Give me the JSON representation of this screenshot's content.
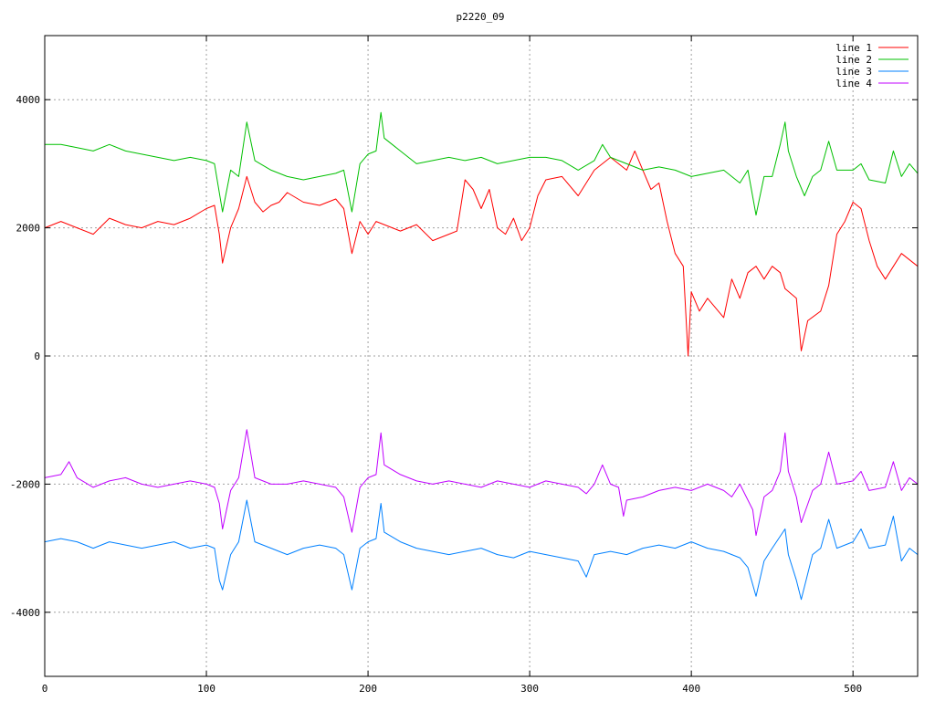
{
  "chart_data": {
    "type": "line",
    "title": "p2220_09",
    "xlabel": "",
    "ylabel": "",
    "xlim": [
      0,
      540
    ],
    "ylim": [
      -5000,
      5000
    ],
    "xticks": [
      0,
      100,
      200,
      300,
      400,
      500
    ],
    "yticks": [
      -4000,
      -2000,
      0,
      2000,
      4000
    ],
    "grid": true,
    "legend_position": "top-right",
    "series": [
      {
        "name": "line 1",
        "color": "#ff0000",
        "points": [
          [
            0,
            2000
          ],
          [
            10,
            2100
          ],
          [
            20,
            2000
          ],
          [
            30,
            1900
          ],
          [
            40,
            2150
          ],
          [
            50,
            2050
          ],
          [
            60,
            2000
          ],
          [
            70,
            2100
          ],
          [
            80,
            2050
          ],
          [
            90,
            2150
          ],
          [
            100,
            2300
          ],
          [
            105,
            2350
          ],
          [
            108,
            1900
          ],
          [
            110,
            1450
          ],
          [
            115,
            2000
          ],
          [
            120,
            2300
          ],
          [
            125,
            2800
          ],
          [
            130,
            2400
          ],
          [
            135,
            2250
          ],
          [
            140,
            2350
          ],
          [
            145,
            2400
          ],
          [
            150,
            2550
          ],
          [
            160,
            2400
          ],
          [
            170,
            2350
          ],
          [
            180,
            2450
          ],
          [
            185,
            2300
          ],
          [
            190,
            1600
          ],
          [
            195,
            2100
          ],
          [
            200,
            1900
          ],
          [
            205,
            2100
          ],
          [
            210,
            2050
          ],
          [
            220,
            1950
          ],
          [
            230,
            2050
          ],
          [
            240,
            1800
          ],
          [
            250,
            1900
          ],
          [
            255,
            1950
          ],
          [
            260,
            2750
          ],
          [
            265,
            2600
          ],
          [
            270,
            2300
          ],
          [
            275,
            2600
          ],
          [
            280,
            2000
          ],
          [
            285,
            1900
          ],
          [
            290,
            2150
          ],
          [
            295,
            1800
          ],
          [
            300,
            2000
          ],
          [
            305,
            2500
          ],
          [
            310,
            2750
          ],
          [
            320,
            2800
          ],
          [
            330,
            2500
          ],
          [
            340,
            2900
          ],
          [
            350,
            3100
          ],
          [
            360,
            2900
          ],
          [
            365,
            3200
          ],
          [
            370,
            2900
          ],
          [
            375,
            2600
          ],
          [
            380,
            2700
          ],
          [
            385,
            2100
          ],
          [
            390,
            1600
          ],
          [
            395,
            1400
          ],
          [
            398,
            0
          ],
          [
            400,
            1000
          ],
          [
            405,
            700
          ],
          [
            410,
            900
          ],
          [
            420,
            600
          ],
          [
            425,
            1200
          ],
          [
            430,
            900
          ],
          [
            435,
            1300
          ],
          [
            440,
            1400
          ],
          [
            445,
            1200
          ],
          [
            450,
            1400
          ],
          [
            455,
            1300
          ],
          [
            458,
            1050
          ],
          [
            465,
            900
          ],
          [
            468,
            80
          ],
          [
            472,
            550
          ],
          [
            480,
            700
          ],
          [
            485,
            1100
          ],
          [
            490,
            1900
          ],
          [
            495,
            2100
          ],
          [
            500,
            2400
          ],
          [
            505,
            2300
          ],
          [
            510,
            1800
          ],
          [
            515,
            1400
          ],
          [
            520,
            1200
          ],
          [
            530,
            1600
          ],
          [
            540,
            1400
          ]
        ]
      },
      {
        "name": "line 2",
        "color": "#00c000",
        "points": [
          [
            0,
            3300
          ],
          [
            10,
            3300
          ],
          [
            20,
            3250
          ],
          [
            30,
            3200
          ],
          [
            40,
            3300
          ],
          [
            50,
            3200
          ],
          [
            60,
            3150
          ],
          [
            70,
            3100
          ],
          [
            80,
            3050
          ],
          [
            90,
            3100
          ],
          [
            100,
            3050
          ],
          [
            105,
            3000
          ],
          [
            110,
            2250
          ],
          [
            115,
            2900
          ],
          [
            120,
            2800
          ],
          [
            125,
            3650
          ],
          [
            130,
            3050
          ],
          [
            140,
            2900
          ],
          [
            150,
            2800
          ],
          [
            160,
            2750
          ],
          [
            170,
            2800
          ],
          [
            180,
            2850
          ],
          [
            185,
            2900
          ],
          [
            190,
            2250
          ],
          [
            195,
            3000
          ],
          [
            200,
            3150
          ],
          [
            205,
            3200
          ],
          [
            208,
            3800
          ],
          [
            210,
            3400
          ],
          [
            215,
            3300
          ],
          [
            220,
            3200
          ],
          [
            230,
            3000
          ],
          [
            240,
            3050
          ],
          [
            250,
            3100
          ],
          [
            260,
            3050
          ],
          [
            270,
            3100
          ],
          [
            280,
            3000
          ],
          [
            290,
            3050
          ],
          [
            300,
            3100
          ],
          [
            310,
            3100
          ],
          [
            320,
            3050
          ],
          [
            330,
            2900
          ],
          [
            340,
            3050
          ],
          [
            345,
            3300
          ],
          [
            350,
            3100
          ],
          [
            360,
            3000
          ],
          [
            370,
            2900
          ],
          [
            380,
            2950
          ],
          [
            390,
            2900
          ],
          [
            400,
            2800
          ],
          [
            410,
            2850
          ],
          [
            420,
            2900
          ],
          [
            430,
            2700
          ],
          [
            435,
            2900
          ],
          [
            440,
            2200
          ],
          [
            445,
            2800
          ],
          [
            450,
            2800
          ],
          [
            455,
            3300
          ],
          [
            458,
            3650
          ],
          [
            460,
            3200
          ],
          [
            465,
            2800
          ],
          [
            470,
            2500
          ],
          [
            475,
            2800
          ],
          [
            480,
            2900
          ],
          [
            485,
            3350
          ],
          [
            490,
            2900
          ],
          [
            500,
            2900
          ],
          [
            505,
            3000
          ],
          [
            510,
            2750
          ],
          [
            520,
            2700
          ],
          [
            525,
            3200
          ],
          [
            530,
            2800
          ],
          [
            535,
            3000
          ],
          [
            540,
            2850
          ]
        ]
      },
      {
        "name": "line 3",
        "color": "#0080ff",
        "points": [
          [
            0,
            -2900
          ],
          [
            10,
            -2850
          ],
          [
            20,
            -2900
          ],
          [
            30,
            -3000
          ],
          [
            40,
            -2900
          ],
          [
            50,
            -2950
          ],
          [
            60,
            -3000
          ],
          [
            70,
            -2950
          ],
          [
            80,
            -2900
          ],
          [
            90,
            -3000
          ],
          [
            100,
            -2950
          ],
          [
            105,
            -3000
          ],
          [
            108,
            -3500
          ],
          [
            110,
            -3650
          ],
          [
            115,
            -3100
          ],
          [
            120,
            -2900
          ],
          [
            125,
            -2250
          ],
          [
            130,
            -2900
          ],
          [
            140,
            -3000
          ],
          [
            150,
            -3100
          ],
          [
            160,
            -3000
          ],
          [
            170,
            -2950
          ],
          [
            180,
            -3000
          ],
          [
            185,
            -3100
          ],
          [
            190,
            -3650
          ],
          [
            195,
            -3000
          ],
          [
            200,
            -2900
          ],
          [
            205,
            -2850
          ],
          [
            208,
            -2300
          ],
          [
            210,
            -2750
          ],
          [
            220,
            -2900
          ],
          [
            230,
            -3000
          ],
          [
            240,
            -3050
          ],
          [
            250,
            -3100
          ],
          [
            260,
            -3050
          ],
          [
            270,
            -3000
          ],
          [
            280,
            -3100
          ],
          [
            290,
            -3150
          ],
          [
            300,
            -3050
          ],
          [
            310,
            -3100
          ],
          [
            320,
            -3150
          ],
          [
            330,
            -3200
          ],
          [
            335,
            -3450
          ],
          [
            340,
            -3100
          ],
          [
            350,
            -3050
          ],
          [
            360,
            -3100
          ],
          [
            370,
            -3000
          ],
          [
            380,
            -2950
          ],
          [
            390,
            -3000
          ],
          [
            400,
            -2900
          ],
          [
            410,
            -3000
          ],
          [
            420,
            -3050
          ],
          [
            430,
            -3150
          ],
          [
            435,
            -3300
          ],
          [
            440,
            -3750
          ],
          [
            445,
            -3200
          ],
          [
            450,
            -3000
          ],
          [
            458,
            -2700
          ],
          [
            460,
            -3100
          ],
          [
            465,
            -3500
          ],
          [
            468,
            -3800
          ],
          [
            475,
            -3100
          ],
          [
            480,
            -3000
          ],
          [
            485,
            -2550
          ],
          [
            490,
            -3000
          ],
          [
            500,
            -2900
          ],
          [
            505,
            -2700
          ],
          [
            510,
            -3000
          ],
          [
            520,
            -2950
          ],
          [
            525,
            -2500
          ],
          [
            530,
            -3200
          ],
          [
            535,
            -3000
          ],
          [
            540,
            -3100
          ]
        ]
      },
      {
        "name": "line 4",
        "color": "#c000ff",
        "points": [
          [
            0,
            -1900
          ],
          [
            10,
            -1850
          ],
          [
            15,
            -1650
          ],
          [
            20,
            -1900
          ],
          [
            30,
            -2050
          ],
          [
            40,
            -1950
          ],
          [
            50,
            -1900
          ],
          [
            60,
            -2000
          ],
          [
            70,
            -2050
          ],
          [
            80,
            -2000
          ],
          [
            90,
            -1950
          ],
          [
            100,
            -2000
          ],
          [
            105,
            -2050
          ],
          [
            108,
            -2300
          ],
          [
            110,
            -2700
          ],
          [
            115,
            -2100
          ],
          [
            120,
            -1900
          ],
          [
            125,
            -1150
          ],
          [
            130,
            -1900
          ],
          [
            140,
            -2000
          ],
          [
            150,
            -2000
          ],
          [
            160,
            -1950
          ],
          [
            170,
            -2000
          ],
          [
            180,
            -2050
          ],
          [
            185,
            -2200
          ],
          [
            190,
            -2750
          ],
          [
            195,
            -2050
          ],
          [
            200,
            -1900
          ],
          [
            205,
            -1850
          ],
          [
            208,
            -1200
          ],
          [
            210,
            -1700
          ],
          [
            220,
            -1850
          ],
          [
            230,
            -1950
          ],
          [
            240,
            -2000
          ],
          [
            250,
            -1950
          ],
          [
            260,
            -2000
          ],
          [
            270,
            -2050
          ],
          [
            280,
            -1950
          ],
          [
            290,
            -2000
          ],
          [
            300,
            -2050
          ],
          [
            310,
            -1950
          ],
          [
            320,
            -2000
          ],
          [
            330,
            -2050
          ],
          [
            335,
            -2150
          ],
          [
            340,
            -2000
          ],
          [
            345,
            -1700
          ],
          [
            350,
            -2000
          ],
          [
            355,
            -2050
          ],
          [
            358,
            -2500
          ],
          [
            360,
            -2250
          ],
          [
            370,
            -2200
          ],
          [
            380,
            -2100
          ],
          [
            390,
            -2050
          ],
          [
            400,
            -2100
          ],
          [
            410,
            -2000
          ],
          [
            420,
            -2100
          ],
          [
            425,
            -2200
          ],
          [
            430,
            -2000
          ],
          [
            438,
            -2400
          ],
          [
            440,
            -2800
          ],
          [
            445,
            -2200
          ],
          [
            450,
            -2100
          ],
          [
            455,
            -1800
          ],
          [
            458,
            -1200
          ],
          [
            460,
            -1800
          ],
          [
            465,
            -2200
          ],
          [
            468,
            -2600
          ],
          [
            475,
            -2100
          ],
          [
            480,
            -2000
          ],
          [
            485,
            -1500
          ],
          [
            490,
            -2000
          ],
          [
            500,
            -1950
          ],
          [
            505,
            -1800
          ],
          [
            510,
            -2100
          ],
          [
            520,
            -2050
          ],
          [
            525,
            -1650
          ],
          [
            530,
            -2100
          ],
          [
            535,
            -1900
          ],
          [
            540,
            -2000
          ]
        ]
      }
    ]
  }
}
